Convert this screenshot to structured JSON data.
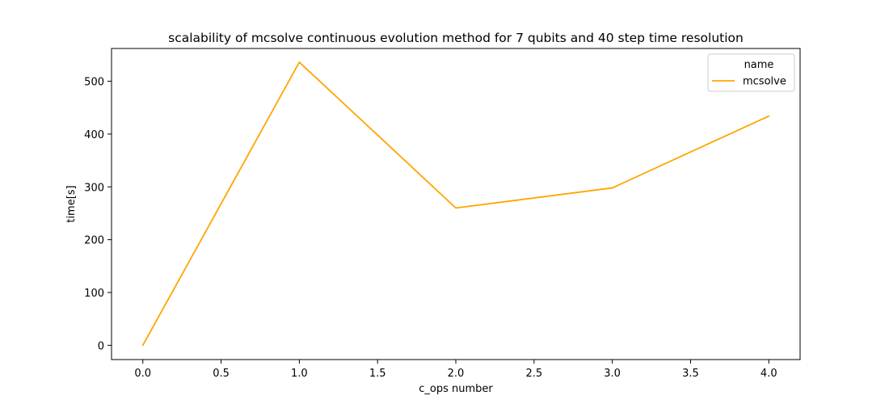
{
  "chart_data": {
    "type": "line",
    "title": "scalability of mcsolve continuous evolution method for 7 qubits and 40 step time resolution",
    "xlabel": "c_ops number",
    "ylabel": "time[s]",
    "xlim": [
      -0.2,
      4.2
    ],
    "ylim": [
      -27,
      562
    ],
    "x_ticks": [
      0.0,
      0.5,
      1.0,
      1.5,
      2.0,
      2.5,
      3.0,
      3.5,
      4.0
    ],
    "x_tick_labels": [
      "0.0",
      "0.5",
      "1.0",
      "1.5",
      "2.0",
      "2.5",
      "3.0",
      "3.5",
      "4.0"
    ],
    "y_ticks": [
      0,
      100,
      200,
      300,
      400,
      500
    ],
    "y_tick_labels": [
      "0",
      "100",
      "200",
      "300",
      "400",
      "500"
    ],
    "grid": false,
    "legend": {
      "title": "name",
      "placement": "top-right"
    },
    "series": [
      {
        "name": "mcsolve",
        "color": "#ffa500",
        "x": [
          0,
          1,
          2,
          3,
          4
        ],
        "y": [
          0,
          536,
          260,
          298,
          434
        ]
      }
    ]
  }
}
